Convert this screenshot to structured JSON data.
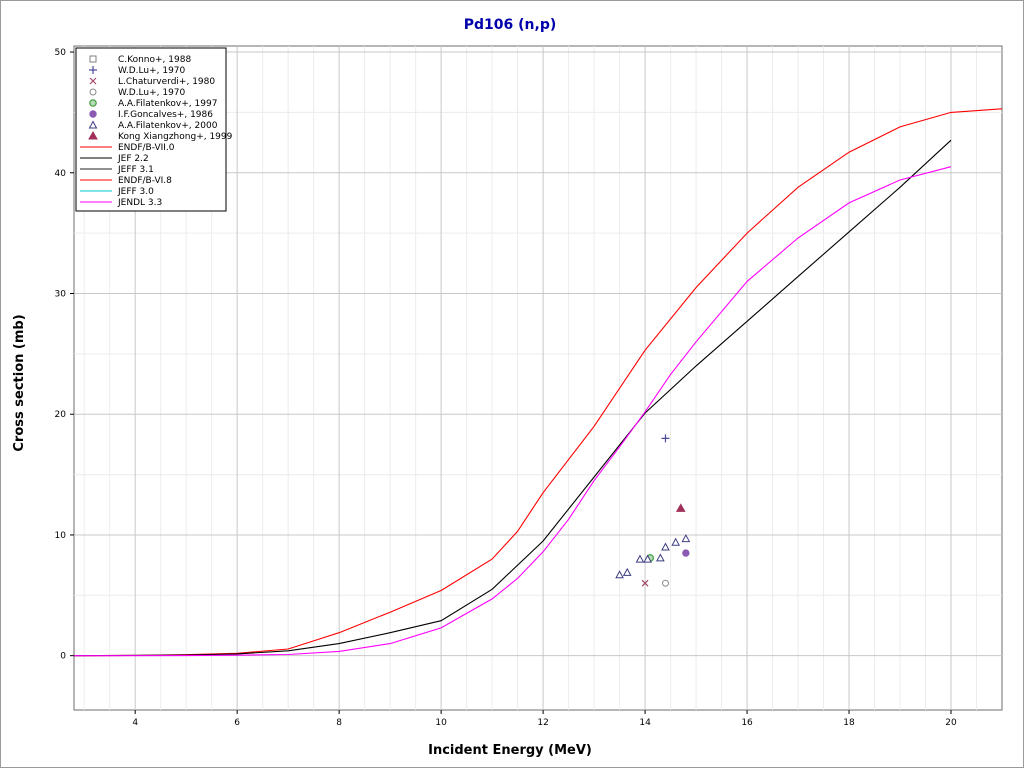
{
  "chart_data": {
    "type": "line",
    "title": "Pd106 (n,p)",
    "title_color": "#0000aa",
    "xlabel": "Incident Energy (MeV)",
    "ylabel": "Cross section (mb)",
    "xlim": [
      2.8,
      21.0
    ],
    "ylim": [
      -4.5,
      50.5
    ],
    "xticks": [
      4,
      6,
      8,
      10,
      12,
      14,
      16,
      18,
      20
    ],
    "yticks": [
      0,
      10,
      20,
      30,
      40,
      50
    ],
    "grid": true,
    "legend_placement": "top-left",
    "series": [
      {
        "name": "C.Konno+, 1988",
        "kind": "scatter",
        "marker": "square-open",
        "color": "#7f7f7f",
        "points": []
      },
      {
        "name": "W.D.Lu+, 1970",
        "kind": "scatter",
        "marker": "plus",
        "color": "#4b4b9b",
        "points": [
          [
            14.4,
            18.0
          ]
        ]
      },
      {
        "name": "L.Chaturverdi+, 1980",
        "kind": "scatter",
        "marker": "x",
        "color": "#a0486a",
        "points": [
          [
            14.0,
            6.0
          ]
        ]
      },
      {
        "name": "W.D.Lu+, 1970",
        "kind": "scatter",
        "marker": "circle-open",
        "color": "#8a8a8a",
        "points": [
          [
            14.4,
            6.0
          ]
        ]
      },
      {
        "name": "A.A.Filatenkov+, 1997",
        "kind": "scatter",
        "marker": "circle-hatched",
        "color": "#3c9c3c",
        "points": [
          [
            14.1,
            8.1
          ]
        ]
      },
      {
        "name": "I.F.Goncalves+, 1986",
        "kind": "scatter",
        "marker": "circle-filled",
        "color": "#8a5ab4",
        "points": [
          [
            14.8,
            8.5
          ]
        ]
      },
      {
        "name": "A.A.Filatenkov+, 2000",
        "kind": "scatter",
        "marker": "triangle-open",
        "color": "#3c3c82",
        "points": [
          [
            13.5,
            6.7
          ],
          [
            13.65,
            6.9
          ],
          [
            13.9,
            8.0
          ],
          [
            14.05,
            8.0
          ],
          [
            14.3,
            8.1
          ],
          [
            14.4,
            9.0
          ],
          [
            14.6,
            9.4
          ],
          [
            14.8,
            9.7
          ]
        ]
      },
      {
        "name": "Kong Xiangzhong+, 1999",
        "kind": "scatter",
        "marker": "triangle-filled",
        "color": "#a0305a",
        "points": [
          [
            14.7,
            12.2
          ]
        ]
      },
      {
        "name": "ENDF/B-VII.0",
        "kind": "line",
        "color": "#ff0000",
        "points": [
          [
            2.8,
            0
          ],
          [
            4,
            0.02
          ],
          [
            5,
            0.08
          ],
          [
            6,
            0.2
          ],
          [
            7,
            0.55
          ],
          [
            8,
            1.9
          ],
          [
            9,
            3.6
          ],
          [
            10,
            5.4
          ],
          [
            11,
            8.0
          ],
          [
            11.5,
            10.3
          ],
          [
            12,
            13.5
          ],
          [
            13,
            19.0
          ],
          [
            14,
            25.3
          ],
          [
            15,
            30.5
          ],
          [
            16,
            35.0
          ],
          [
            17,
            38.8
          ],
          [
            18,
            41.7
          ],
          [
            19,
            43.8
          ],
          [
            20,
            45.0
          ],
          [
            21,
            45.3
          ]
        ]
      },
      {
        "name": "JEF 2.2",
        "kind": "line",
        "color": "#000000",
        "points": [
          [
            2.8,
            0
          ],
          [
            5,
            0.05
          ],
          [
            6,
            0.15
          ],
          [
            7,
            0.4
          ],
          [
            8,
            1.0
          ],
          [
            9,
            1.9
          ],
          [
            10,
            2.9
          ],
          [
            11,
            5.5
          ],
          [
            12,
            9.5
          ],
          [
            13,
            14.8
          ],
          [
            14,
            20.1
          ],
          [
            15,
            24.0
          ],
          [
            16,
            27.7
          ],
          [
            17,
            31.4
          ],
          [
            18,
            35.1
          ],
          [
            19,
            38.8
          ],
          [
            20,
            42.7
          ]
        ]
      },
      {
        "name": "JEFF 3.1",
        "kind": "line",
        "color": "#202020",
        "points": []
      },
      {
        "name": "ENDF/B-VI.8",
        "kind": "line",
        "color": "#ff0000",
        "points": []
      },
      {
        "name": "JEFF 3.0",
        "kind": "line",
        "color": "#00c8c8",
        "points": []
      },
      {
        "name": "JENDL 3.3",
        "kind": "line",
        "color": "#ff00ff",
        "points": [
          [
            2.8,
            0
          ],
          [
            5,
            0.01
          ],
          [
            6,
            0.04
          ],
          [
            7,
            0.1
          ],
          [
            8,
            0.35
          ],
          [
            9,
            1.0
          ],
          [
            10,
            2.3
          ],
          [
            11,
            4.7
          ],
          [
            11.5,
            6.4
          ],
          [
            12,
            8.6
          ],
          [
            12.5,
            11.3
          ],
          [
            13,
            14.5
          ],
          [
            13.5,
            17.3
          ],
          [
            14,
            20.2
          ],
          [
            14.5,
            23.3
          ],
          [
            15,
            26.0
          ],
          [
            16,
            31.0
          ],
          [
            17,
            34.6
          ],
          [
            18,
            37.5
          ],
          [
            19,
            39.4
          ],
          [
            20,
            40.5
          ]
        ]
      }
    ]
  }
}
